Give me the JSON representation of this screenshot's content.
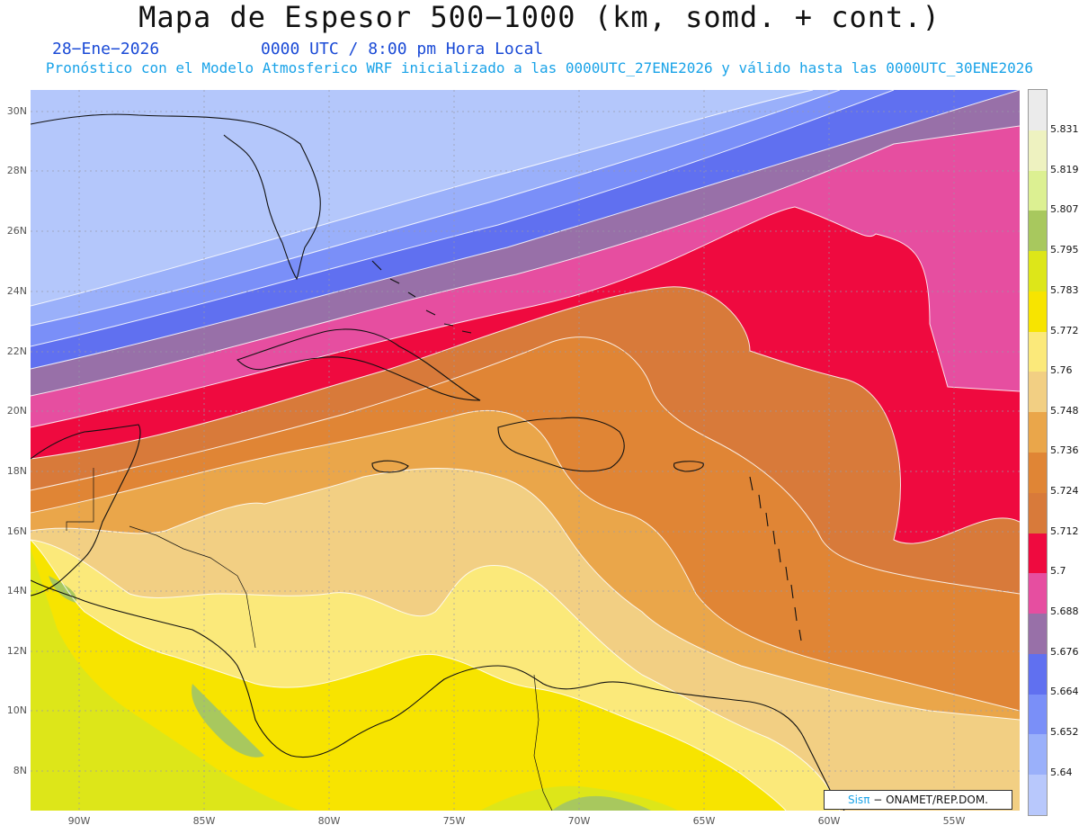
{
  "title": "Mapa de Espesor 500−1000 (km, somd. + cont.)",
  "date": "28−Ene−2026",
  "time": "0000 UTC / 8:00 pm Hora Local",
  "forecast_line": "Pronóstico con el Modelo Atmosferico WRF inicializado a las 0000UTC_27ENE2026 y válido hasta las  0000UTC_30ENE2026",
  "credit": {
    "brand": "Sisπ",
    "text": " − ONAMET/REP.DOM."
  },
  "lat_labels": [
    "30N",
    "28N",
    "26N",
    "24N",
    "22N",
    "20N",
    "18N",
    "16N",
    "14N",
    "12N",
    "10N",
    "8N"
  ],
  "lon_labels": [
    "90W",
    "85W",
    "80W",
    "75W",
    "70W",
    "65W",
    "60W",
    "55W"
  ],
  "colorbar": {
    "labels": [
      "5.831",
      "5.819",
      "5.807",
      "5.795",
      "5.783",
      "5.772",
      "5.76",
      "5.748",
      "5.736",
      "5.724",
      "5.712",
      "5.7",
      "5.688",
      "5.676",
      "5.664",
      "5.652",
      "5.64"
    ],
    "colors": [
      "#ebebeb",
      "#eef2c0",
      "#dcf092",
      "#a8c85e",
      "#dde619",
      "#f7e400",
      "#fbe97a",
      "#f2cf83",
      "#eaa64a",
      "#e08535",
      "#d87a3a",
      "#ef0a3f",
      "#e64ea0",
      "#9870a8",
      "#6070f0",
      "#7a8ff8",
      "#9ab0fa",
      "#b8c8fc"
    ]
  },
  "thickness_fill_colors": {
    "low_5640": "#b4c7fb",
    "c5652": "#9ab0fa",
    "c5664": "#7a8ff8",
    "c5676": "#6070f0",
    "c5688": "#9870a8",
    "c5700": "#e64ea0",
    "c5712": "#ef0a3f",
    "c5724": "#d87a3a",
    "c5736": "#e08535",
    "c5748": "#eaa64a",
    "c5760": "#f2cf83",
    "c5772": "#fbe97a",
    "c5783": "#f7e400",
    "c5795": "#dde619",
    "c5807": "#a8c85e"
  }
}
